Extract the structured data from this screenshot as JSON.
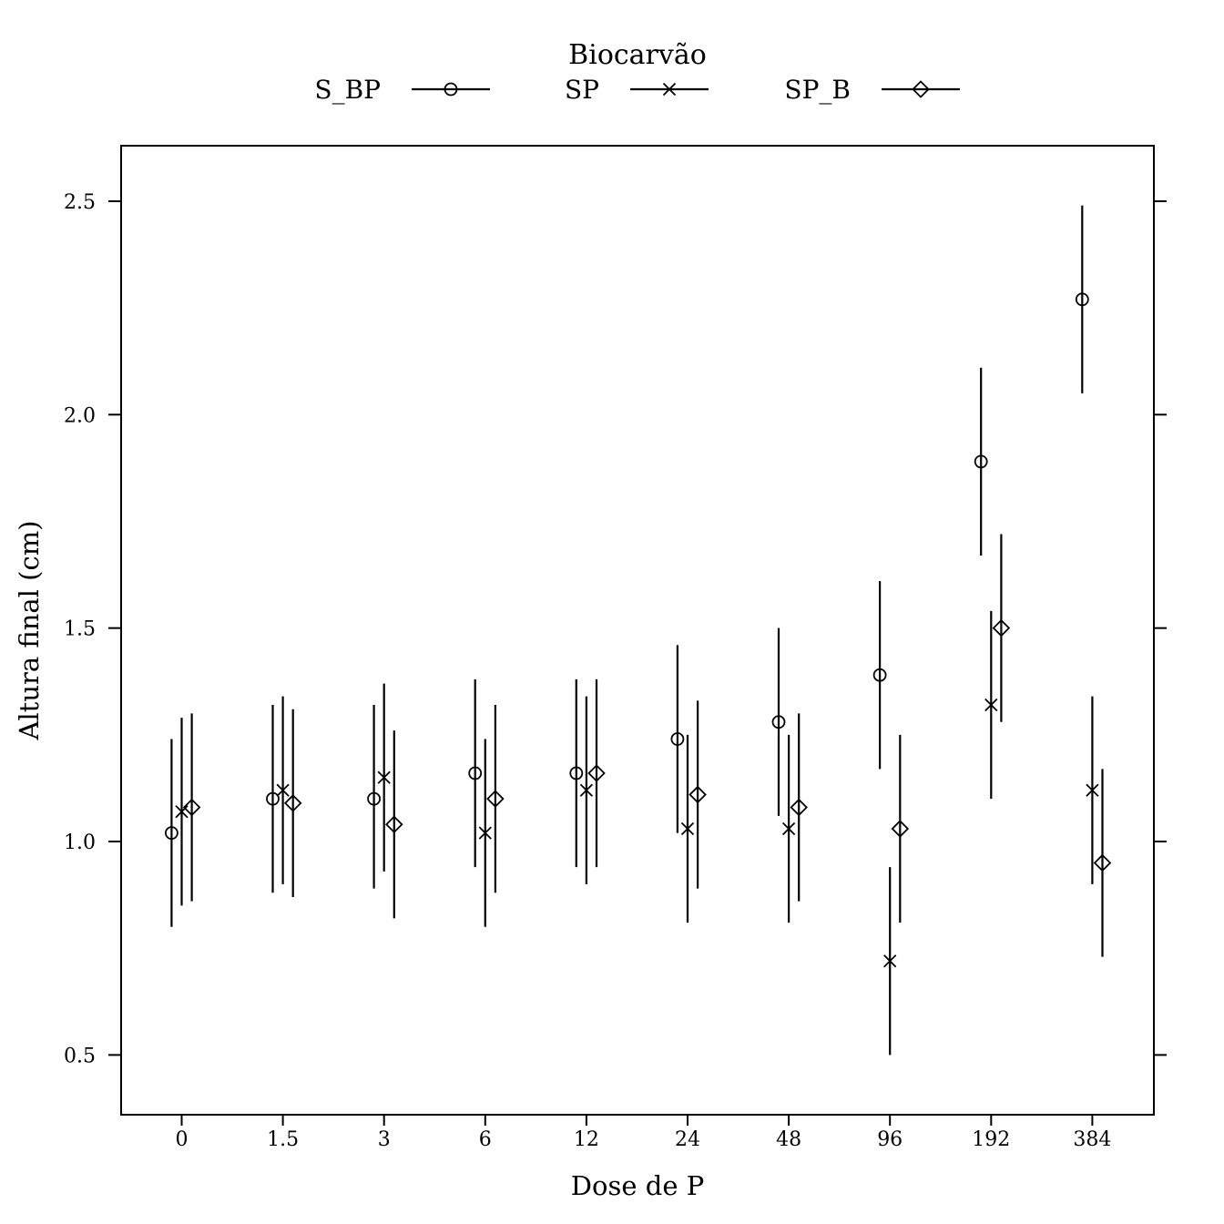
{
  "chart_data": {
    "type": "scatter",
    "title": "",
    "xlabel": "Dose de P",
    "ylabel": "Altura final (cm)",
    "ylim": [
      0.36,
      2.63
    ],
    "yticks": [
      "0.5",
      "1.0",
      "1.5",
      "2.0",
      "2.5"
    ],
    "ytick_values": [
      0.5,
      1.0,
      1.5,
      2.0,
      2.5
    ],
    "categories": [
      "0",
      "1.5",
      "3",
      "6",
      "12",
      "24",
      "48",
      "96",
      "192",
      "384"
    ],
    "grid": false,
    "legend": {
      "title": "Biocarvão",
      "position": "top",
      "entries": [
        "S_BP",
        "SP",
        "SP_B"
      ]
    },
    "series": [
      {
        "name": "S_BP",
        "marker": "circle",
        "values": [
          1.02,
          1.1,
          1.1,
          1.16,
          1.16,
          1.24,
          1.28,
          1.39,
          1.89,
          2.27
        ],
        "lower": [
          0.8,
          0.88,
          0.89,
          0.94,
          0.94,
          1.02,
          1.06,
          1.17,
          1.67,
          2.05
        ],
        "upper": [
          1.24,
          1.32,
          1.32,
          1.38,
          1.38,
          1.46,
          1.5,
          1.61,
          2.11,
          2.49
        ]
      },
      {
        "name": "SP",
        "marker": "x",
        "values": [
          1.07,
          1.12,
          1.15,
          1.02,
          1.12,
          1.03,
          1.03,
          0.72,
          1.32,
          1.12
        ],
        "lower": [
          0.85,
          0.9,
          0.93,
          0.8,
          0.9,
          0.81,
          0.81,
          0.5,
          1.1,
          0.9
        ],
        "upper": [
          1.29,
          1.34,
          1.37,
          1.24,
          1.34,
          1.25,
          1.25,
          0.94,
          1.54,
          1.34
        ]
      },
      {
        "name": "SP_B",
        "marker": "diamond",
        "values": [
          1.08,
          1.09,
          1.04,
          1.1,
          1.16,
          1.11,
          1.08,
          1.03,
          1.5,
          0.95
        ],
        "lower": [
          0.86,
          0.87,
          0.82,
          0.88,
          0.94,
          0.89,
          0.86,
          0.81,
          1.28,
          0.73
        ],
        "upper": [
          1.3,
          1.31,
          1.26,
          1.32,
          1.38,
          1.33,
          1.3,
          1.25,
          1.72,
          1.17
        ]
      }
    ]
  }
}
